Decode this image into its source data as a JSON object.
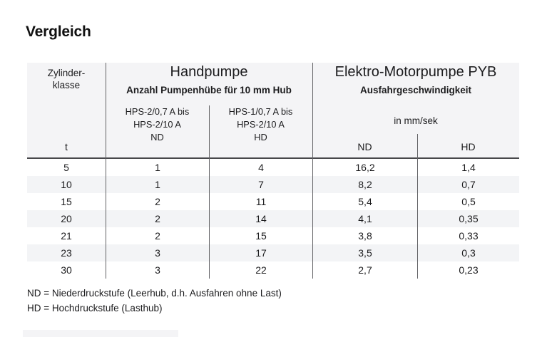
{
  "page": {
    "title": "Vergleich"
  },
  "table": {
    "cylinder_col": {
      "header_line1": "Zylinder-",
      "header_line2": "klasse",
      "unit": "t"
    },
    "handpumpe_group": {
      "title": "Handpumpe",
      "subtitle": "Anzahl Pumpenhübe für 10 mm Hub",
      "nd_col": {
        "line1": "HPS-2/0,7 A bis",
        "line2": "HPS-2/10 A",
        "stage": "ND"
      },
      "hd_col": {
        "line1": "HPS-1/0,7 A bis",
        "line2": "HPS-2/10 A",
        "stage": "HD"
      }
    },
    "elektro_group": {
      "title": "Elektro-Motorpumpe PYB",
      "subtitle": "Ausfahrgeschwindigkeit",
      "unit": "in mm/sek",
      "nd_label": "ND",
      "hd_label": "HD"
    },
    "rows": [
      {
        "t": "5",
        "hand_nd": "1",
        "hand_hd": "4",
        "motor_nd": "16,2",
        "motor_hd": "1,4"
      },
      {
        "t": "10",
        "hand_nd": "1",
        "hand_hd": "7",
        "motor_nd": "8,2",
        "motor_hd": "0,7"
      },
      {
        "t": "15",
        "hand_nd": "2",
        "hand_hd": "11",
        "motor_nd": "5,4",
        "motor_hd": "0,5"
      },
      {
        "t": "20",
        "hand_nd": "2",
        "hand_hd": "14",
        "motor_nd": "4,1",
        "motor_hd": "0,35"
      },
      {
        "t": "21",
        "hand_nd": "2",
        "hand_hd": "15",
        "motor_nd": "3,8",
        "motor_hd": "0,33"
      },
      {
        "t": "23",
        "hand_nd": "3",
        "hand_hd": "17",
        "motor_nd": "3,5",
        "motor_hd": "0,3"
      },
      {
        "t": "30",
        "hand_nd": "3",
        "hand_hd": "22",
        "motor_nd": "2,7",
        "motor_hd": "0,23"
      }
    ]
  },
  "footnotes": [
    "ND = Niederdruckstufe (Leerhub, d.h. Ausfahren ohne Last)",
    "HD = Hochdruckstufe (Lasthub)"
  ],
  "colors": {
    "header_bg": "#f4f4f6",
    "alt_row_bg": "#f3f4f6",
    "divider": "#626265",
    "header_rule": "#47474a",
    "text": "#1c1c1e"
  }
}
